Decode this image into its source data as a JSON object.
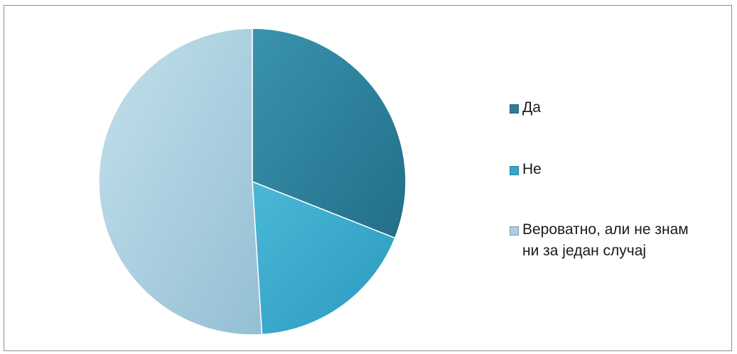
{
  "chart_data": {
    "type": "pie",
    "title": "",
    "categories": [
      "Да",
      "Не",
      "Вероватно, али не знам ни за један случај"
    ],
    "values": [
      31,
      18,
      51
    ],
    "colors": [
      "#2b7f9b",
      "#35a9cb",
      "#a9cfe0"
    ],
    "legend": {
      "position": "right",
      "labels": [
        "Да",
        "Не",
        "Вероватно, али не знам ни за један случај"
      ],
      "label_lines": [
        [
          "Да"
        ],
        [
          "Не"
        ],
        [
          "Вероватно, али не знам",
          "ни за један случај"
        ]
      ]
    }
  }
}
